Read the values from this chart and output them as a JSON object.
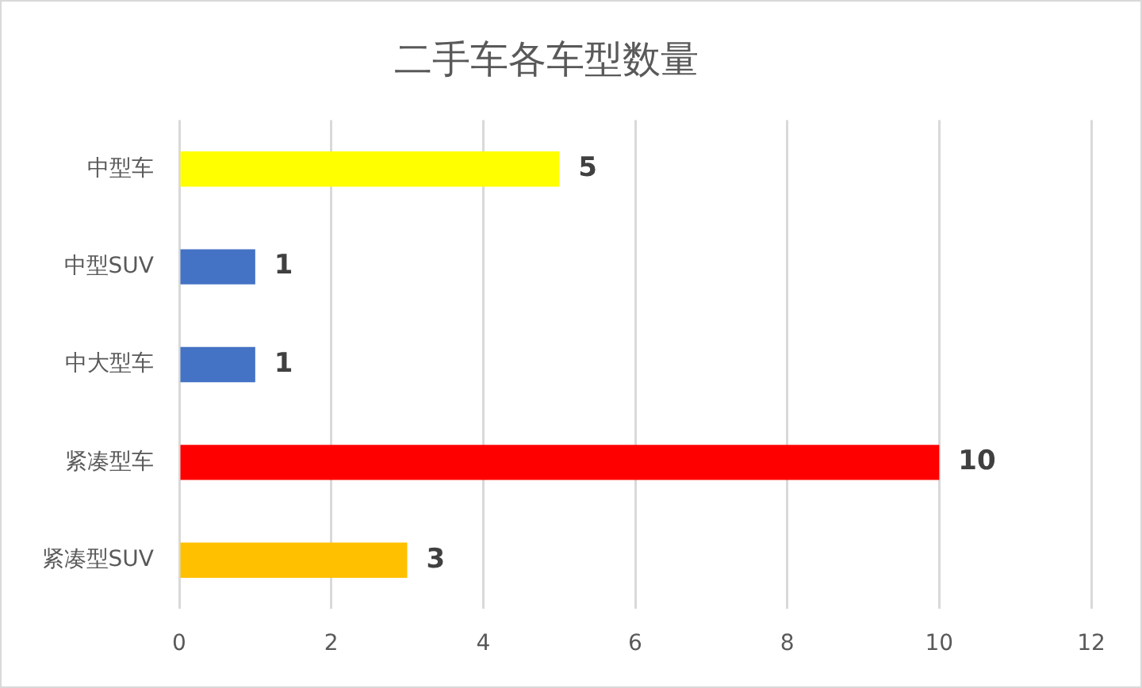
{
  "chart_data": {
    "type": "bar",
    "orientation": "horizontal",
    "title": "二手车各车型数量",
    "categories": [
      "中型车",
      "中型SUV",
      "中大型车",
      "紧凑型车",
      "紧凑型SUV"
    ],
    "values": [
      5,
      1,
      1,
      10,
      3
    ],
    "colors": [
      "#ffff00",
      "#4472c4",
      "#4472c4",
      "#ff0000",
      "#ffc000"
    ],
    "xlim": [
      0,
      12
    ],
    "xticks": [
      0,
      2,
      4,
      6,
      8,
      10,
      12
    ],
    "grid": "x",
    "data_labels": true,
    "legend": false
  }
}
